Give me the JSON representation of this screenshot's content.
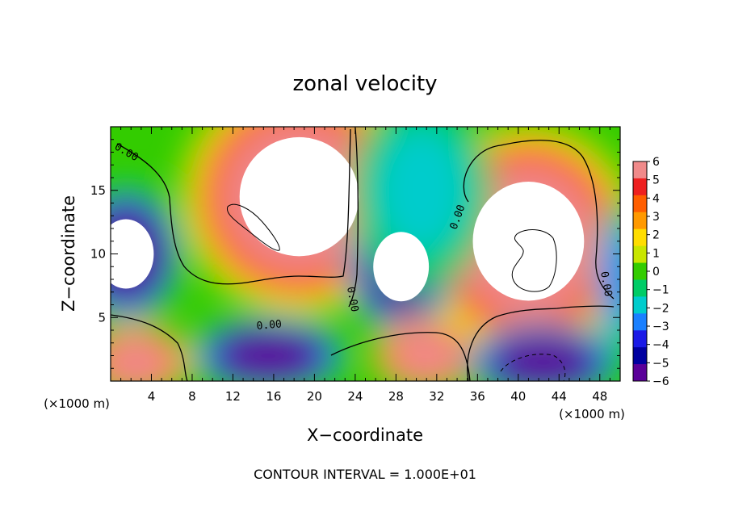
{
  "chart_data": {
    "type": "heatmap",
    "title": "zonal velocity",
    "xlabel": "X−coordinate",
    "ylabel": "Z−coordinate",
    "x_unit": "(×1000 m)",
    "y_unit": "(×1000 m)",
    "xlim": [
      0,
      50
    ],
    "ylim": [
      0,
      20
    ],
    "x_ticks": [
      4,
      8,
      12,
      16,
      20,
      24,
      28,
      32,
      36,
      40,
      44,
      48
    ],
    "y_ticks": [
      5,
      10,
      15
    ],
    "colorbar": {
      "levels": [
        "6",
        "5",
        "4",
        "3",
        "2",
        "1",
        "0",
        "−1",
        "−2",
        "−3",
        "−4",
        "−5",
        "−6"
      ],
      "range": [
        -6,
        6
      ],
      "colors": [
        "#f08a8a",
        "#ee2020",
        "#ff5e00",
        "#ff9900",
        "#ffdd00",
        "#c8e600",
        "#33cc00",
        "#00cc66",
        "#00cccc",
        "#1a80ff",
        "#1a1ae6",
        "#0000a0",
        "#5a0099"
      ]
    },
    "contour_labels": [
      "0.00",
      "0.00",
      "0.00",
      "0.00",
      "0.00"
    ],
    "contour_interval_text": "CONTOUR INTERVAL = 1.000E+01",
    "regions": [
      {
        "name": "upper-left-jet",
        "cx": 18.5,
        "cy": 14.5,
        "rx": 7.5,
        "ry": 6.0,
        "value": 7
      },
      {
        "name": "right-jet",
        "cx": 41.0,
        "cy": 11.0,
        "rx": 7.0,
        "ry": 6.0,
        "value": 7
      },
      {
        "name": "left-easterly",
        "cx": 1.5,
        "cy": 10.0,
        "rx": 3.5,
        "ry": 3.5,
        "value": -7
      },
      {
        "name": "central-easterly",
        "cx": 28.5,
        "cy": 9.0,
        "rx": 3.5,
        "ry": 3.5,
        "value": -7
      },
      {
        "name": "lower-left-jet",
        "cx": 2.5,
        "cy": 1.5,
        "rx": 3.5,
        "ry": 2.0,
        "value": 6
      },
      {
        "name": "lower-center-easterly",
        "cx": 15.5,
        "cy": 2.0,
        "rx": 5.0,
        "ry": 2.0,
        "value": -6
      },
      {
        "name": "lower-center-jet",
        "cx": 31.0,
        "cy": 2.0,
        "rx": 3.5,
        "ry": 2.0,
        "value": 6
      },
      {
        "name": "lower-right-easterly",
        "cx": 42.5,
        "cy": 1.5,
        "rx": 5.0,
        "ry": 2.0,
        "value": -6
      },
      {
        "name": "upper-mid-easterly",
        "cx": 30.5,
        "cy": 15.0,
        "rx": 4.5,
        "ry": 5.0,
        "value": -2.5
      },
      {
        "name": "right-edge-easterly",
        "cx": 50.0,
        "cy": 8.0,
        "rx": 1.5,
        "ry": 4.0,
        "value": -3
      }
    ]
  }
}
